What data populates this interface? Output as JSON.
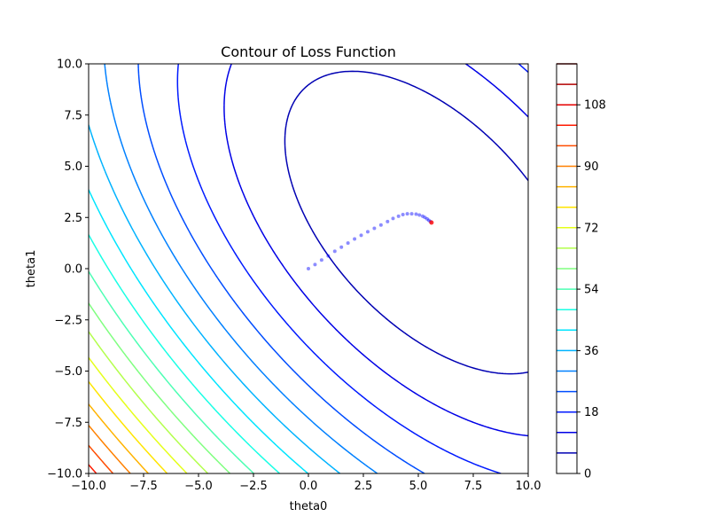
{
  "chart_data": {
    "type": "contour",
    "title": "Contour of Loss Function",
    "xlabel": "theta0",
    "ylabel": "theta1",
    "xlim": [
      -10,
      10
    ],
    "ylim": [
      -10,
      10
    ],
    "x_ticks": [
      "−10.0",
      "−7.5",
      "−5.0",
      "−2.5",
      "0.0",
      "2.5",
      "5.0",
      "7.5",
      "10.0"
    ],
    "y_ticks": [
      "−10.0",
      "−7.5",
      "−5.0",
      "−2.5",
      "0.0",
      "2.5",
      "5.0",
      "7.5",
      "10.0"
    ],
    "x_tick_values": [
      -10,
      -7.5,
      -5,
      -2.5,
      0,
      2.5,
      5,
      7.5,
      10
    ],
    "y_tick_values": [
      -10,
      -7.5,
      -5,
      -2.5,
      0,
      2.5,
      5,
      7.5,
      10
    ],
    "colormap": "jet",
    "grid": false,
    "contour_levels": [
      6,
      12,
      18,
      24,
      30,
      36,
      42,
      48,
      54,
      60,
      66,
      72,
      78,
      84,
      90,
      96,
      102,
      108,
      114,
      120
    ],
    "colorbar": {
      "min": 0,
      "max": 120,
      "tick_values": [
        0,
        18,
        36,
        54,
        72,
        90,
        108
      ],
      "tick_labels": [
        "0",
        "18",
        "36",
        "54",
        "72",
        "90",
        "108"
      ]
    },
    "loss_model": {
      "center": [
        5.6,
        2.25
      ],
      "a": 0.19,
      "b": 0.155,
      "c": 0.0925
    },
    "descent_path": {
      "start": [
        0,
        0
      ],
      "end": [
        5.6,
        2.25
      ],
      "marker_color": "#0000ff",
      "final_point_color": "#ff0000",
      "points": [
        [
          0.0,
          0.0
        ],
        [
          0.3,
          0.2
        ],
        [
          0.6,
          0.42
        ],
        [
          0.9,
          0.62
        ],
        [
          1.2,
          0.85
        ],
        [
          1.5,
          1.05
        ],
        [
          1.8,
          1.25
        ],
        [
          2.1,
          1.45
        ],
        [
          2.4,
          1.63
        ],
        [
          2.7,
          1.8
        ],
        [
          3.0,
          1.97
        ],
        [
          3.3,
          2.13
        ],
        [
          3.6,
          2.3
        ],
        [
          3.85,
          2.45
        ],
        [
          4.1,
          2.56
        ],
        [
          4.3,
          2.64
        ],
        [
          4.5,
          2.68
        ],
        [
          4.7,
          2.68
        ],
        [
          4.9,
          2.66
        ],
        [
          5.05,
          2.62
        ],
        [
          5.2,
          2.56
        ],
        [
          5.3,
          2.5
        ],
        [
          5.4,
          2.43
        ],
        [
          5.48,
          2.36
        ],
        [
          5.55,
          2.3
        ],
        [
          5.6,
          2.25
        ]
      ]
    }
  }
}
